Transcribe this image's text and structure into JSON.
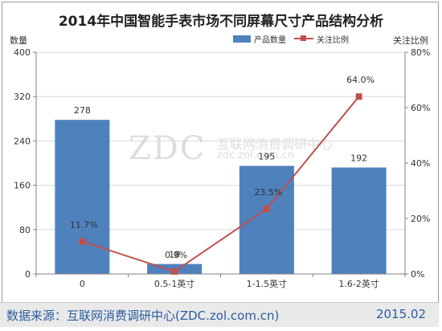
{
  "chart_data": {
    "type": "bar",
    "title": "2014年中国智能手表市场不同屏幕尺寸产品结构分析",
    "categories": [
      "0",
      "0.5-1英寸",
      "1-1.5英寸",
      "1.6-2英寸"
    ],
    "y_left_label": "数量",
    "y_right_label": "关注比例",
    "y_left_ticks": [
      "0",
      "80",
      "160",
      "240",
      "320",
      "400"
    ],
    "y_right_ticks": [
      "0%",
      "20%",
      "40%",
      "60%",
      "80%"
    ],
    "ylim_left": [
      0,
      400
    ],
    "ylim_right": [
      0,
      80
    ],
    "series": [
      {
        "name": "产品数量",
        "type": "bar",
        "axis": "left",
        "values": [
          278,
          18,
          195,
          192
        ],
        "labels": [
          "278",
          "18",
          "195",
          "192"
        ],
        "color": "#4f81bd"
      },
      {
        "name": "关注比例",
        "type": "line",
        "axis": "right",
        "values": [
          11.7,
          0.9,
          23.5,
          64.0
        ],
        "labels": [
          "11.7%",
          "0.9%",
          "23.5%",
          "64.0%"
        ],
        "color": "#c0504d"
      }
    ],
    "grid": true,
    "legend_position": "top-right"
  },
  "watermark": {
    "logo": "ZDC",
    "name": "互联网消费调研中心",
    "url": "zdc.zol.com.cn"
  },
  "footer": {
    "source": "数据来源：互联网消费调研中心(ZDC.zol.com.cn)",
    "date": "2015.02"
  }
}
